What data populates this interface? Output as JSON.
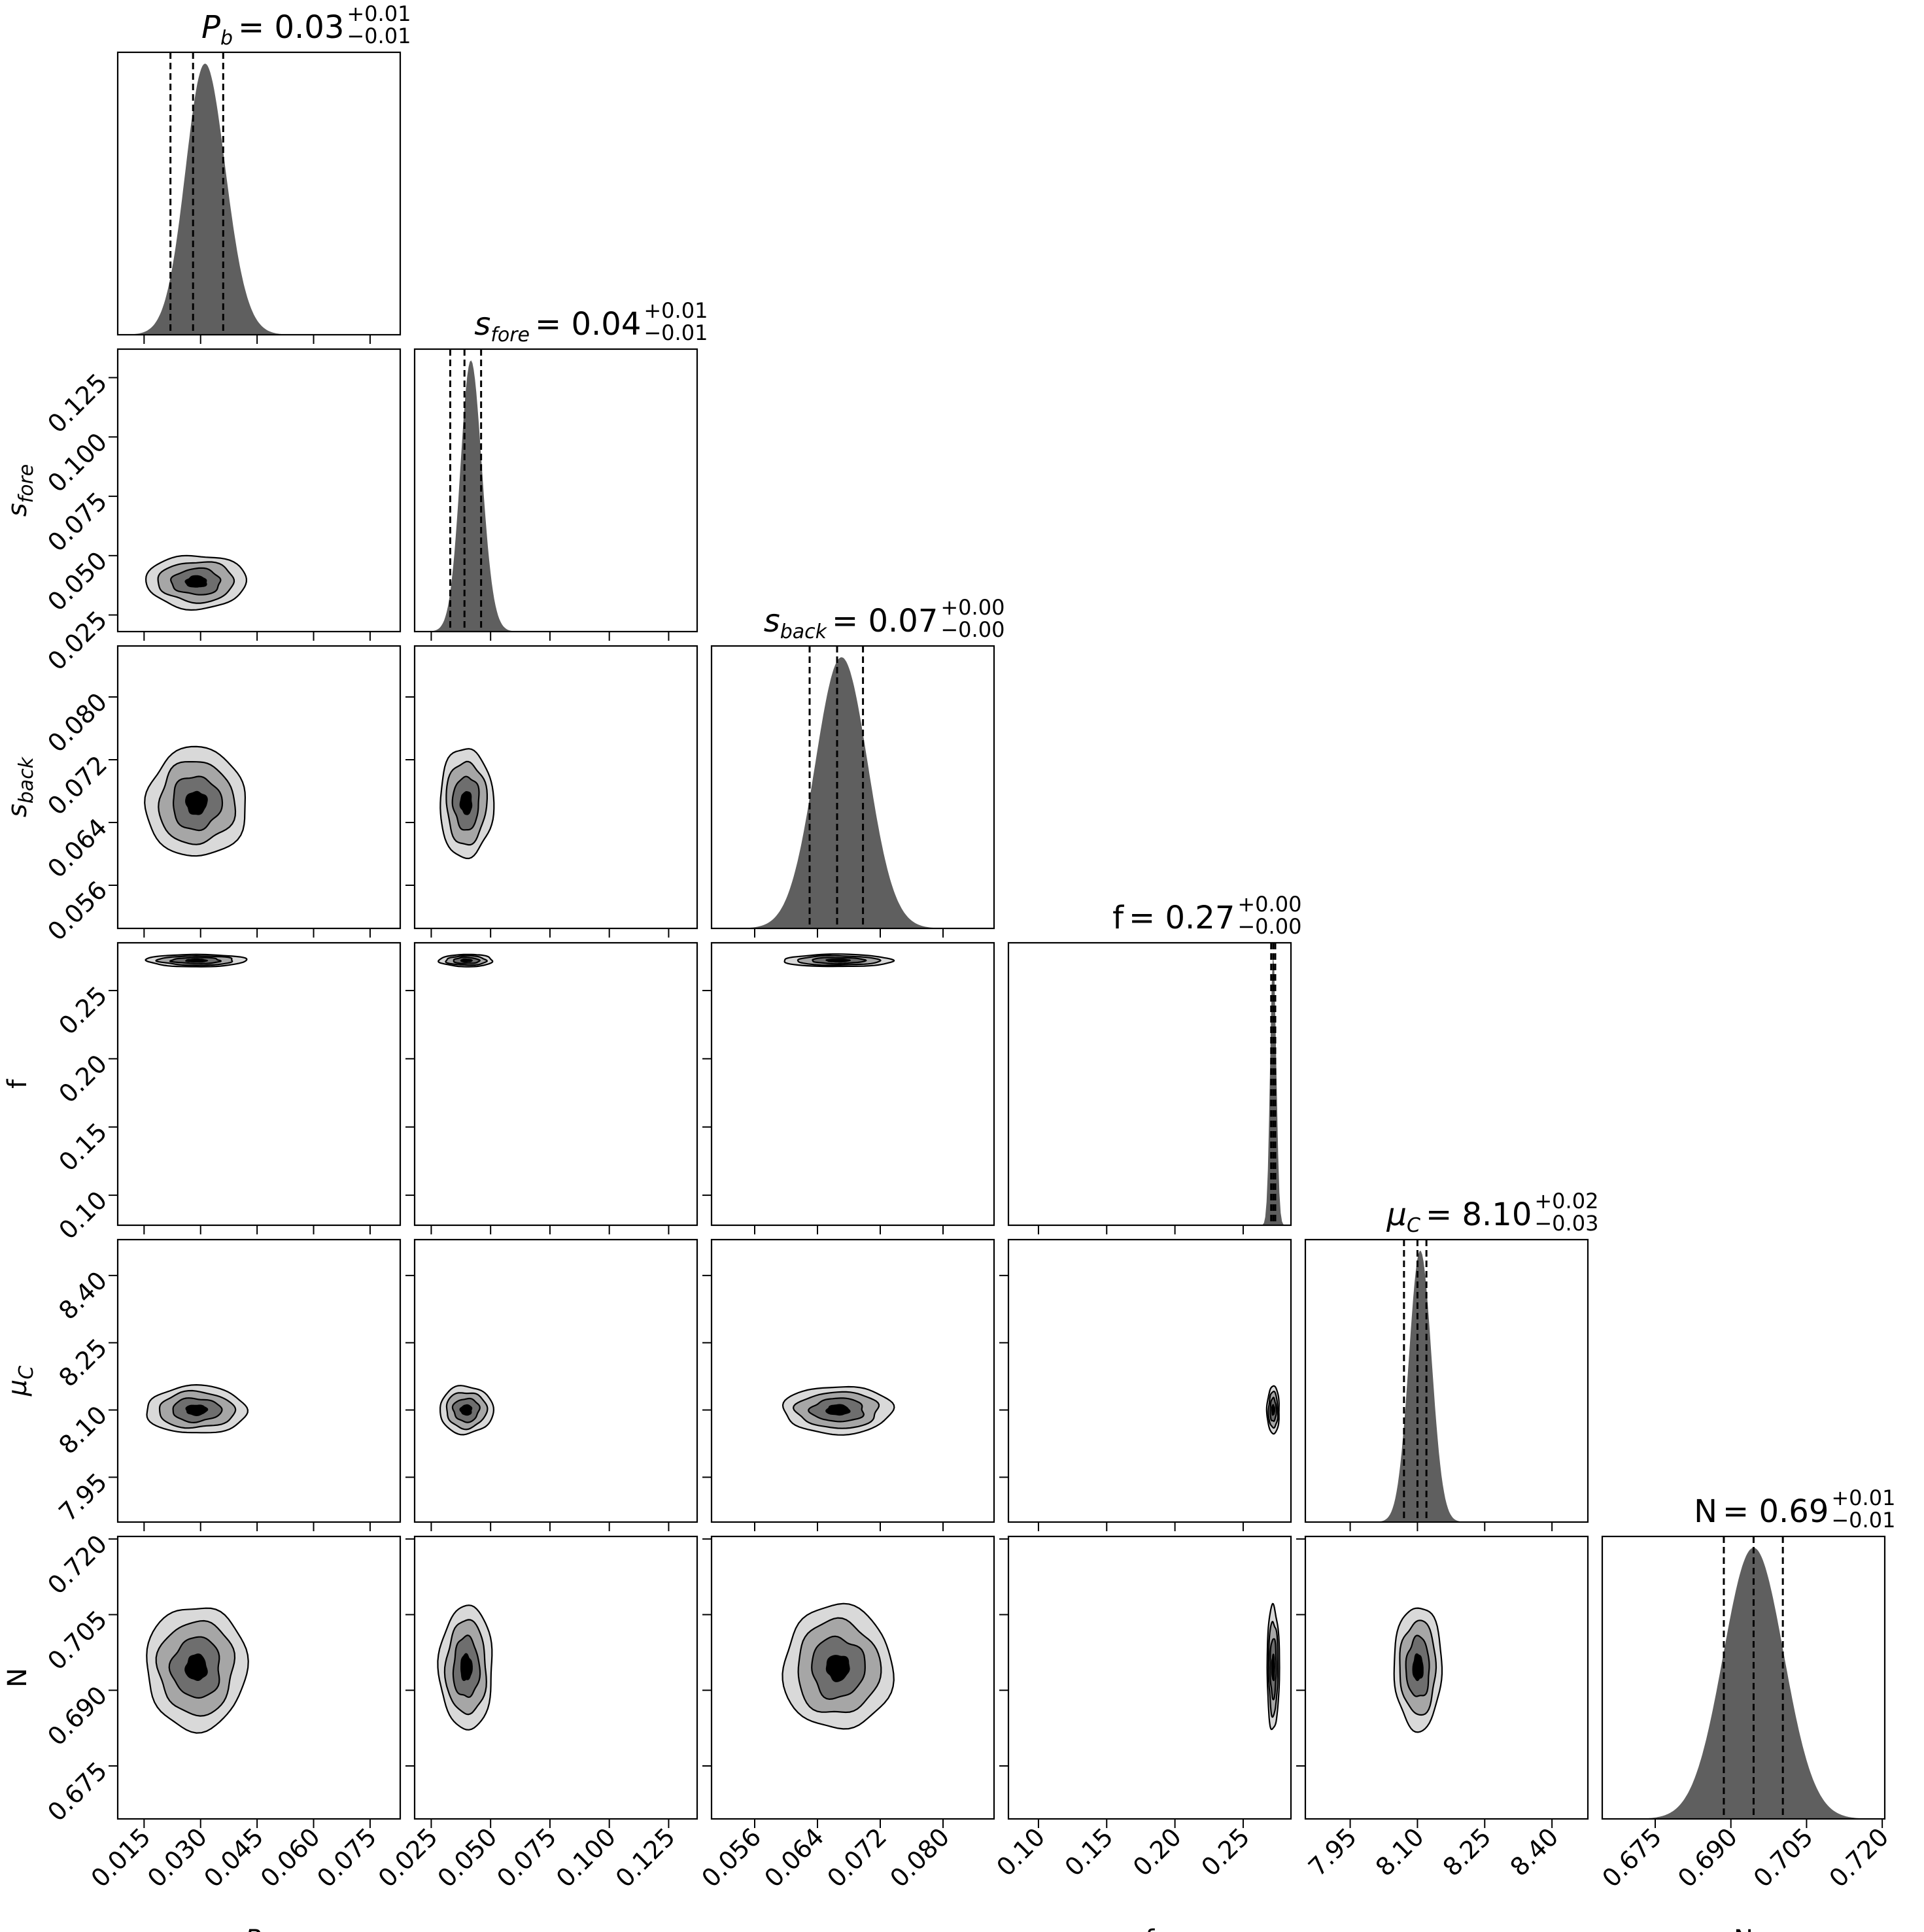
{
  "chart_data": {
    "type": "corner",
    "colors": {
      "histogram": "#5f5f5f",
      "levels": [
        "#d9d9d9",
        "#a6a6a6",
        "#6e6e6e",
        "#000000"
      ]
    },
    "parameters": [
      {
        "key": "Pb",
        "label": "P",
        "label_sub": "b",
        "range": [
          0.008,
          0.083
        ],
        "ticks": [
          "0.015",
          "0.030",
          "0.045",
          "0.060",
          "0.075"
        ],
        "tick_values": [
          0.015,
          0.03,
          0.045,
          0.06,
          0.075
        ],
        "median": 0.028,
        "q_low": 0.022,
        "q_high": 0.036,
        "sigma": 0.0065,
        "skew": 0.9,
        "title_value": "0.03",
        "title_plus": "+0.01",
        "title_minus": "−0.01"
      },
      {
        "key": "sfore",
        "label": "s",
        "label_sub": "fore",
        "range": [
          0.018,
          0.137
        ],
        "ticks": [
          "0.025",
          "0.050",
          "0.075",
          "0.100",
          "0.125"
        ],
        "tick_values": [
          0.025,
          0.05,
          0.075,
          0.1,
          0.125
        ],
        "median": 0.039,
        "q_low": 0.033,
        "q_high": 0.046,
        "sigma": 0.0055,
        "skew": 0.9,
        "title_value": "0.04",
        "title_plus": "+0.01",
        "title_minus": "−0.01"
      },
      {
        "key": "sback",
        "label": "s",
        "label_sub": "back",
        "range": [
          0.0505,
          0.0865
        ],
        "ticks": [
          "0.056",
          "0.064",
          "0.072",
          "0.080"
        ],
        "tick_values": [
          0.056,
          0.064,
          0.072,
          0.08
        ],
        "median": 0.0665,
        "q_low": 0.063,
        "q_high": 0.0698,
        "sigma": 0.0034,
        "skew": 0.2,
        "title_value": "0.07",
        "title_plus": "+0.00",
        "title_minus": "−0.00"
      },
      {
        "key": "f",
        "label": "f",
        "label_sub": "",
        "range": [
          0.078,
          0.285
        ],
        "ticks": [
          "0.10",
          "0.15",
          "0.20",
          "0.25"
        ],
        "tick_values": [
          0.1,
          0.15,
          0.2,
          0.25
        ],
        "median": 0.272,
        "q_low": 0.2705,
        "q_high": 0.2735,
        "sigma": 0.0022,
        "skew": 0.0,
        "title_value": "0.27",
        "title_plus": "+0.00",
        "title_minus": "−0.00"
      },
      {
        "key": "muC",
        "label": "μ",
        "label_sub": "C",
        "range": [
          7.85,
          8.48
        ],
        "ticks": [
          "7.95",
          "8.10",
          "8.25",
          "8.40"
        ],
        "tick_values": [
          7.95,
          8.1,
          8.25,
          8.4
        ],
        "median": 8.1,
        "q_low": 8.07,
        "q_high": 8.12,
        "sigma": 0.026,
        "skew": 0.3,
        "title_value": "8.10",
        "title_plus": "+0.02",
        "title_minus": "−0.03"
      },
      {
        "key": "N",
        "label": "N",
        "label_sub": "",
        "range": [
          0.6645,
          0.7205
        ],
        "ticks": [
          "0.675",
          "0.690",
          "0.705",
          "0.720"
        ],
        "tick_values": [
          0.675,
          0.69,
          0.705,
          0.72
        ],
        "median": 0.6945,
        "q_low": 0.6886,
        "q_high": 0.7003,
        "sigma": 0.006,
        "skew": 0.0,
        "title_value": "0.69",
        "title_plus": "+0.01",
        "title_minus": "−0.01"
      }
    ]
  }
}
